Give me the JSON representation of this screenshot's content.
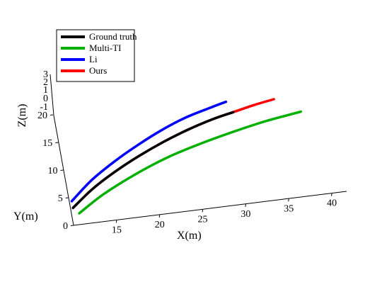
{
  "chart_data": {
    "type": "line",
    "title": "",
    "xlabel": "X(m)",
    "ylabel": "Y(m)",
    "zlabel": "Z(m)",
    "x_ticks": [
      "15",
      "20",
      "25",
      "30",
      "35",
      "40"
    ],
    "y_ticks": [
      "0",
      "5",
      "10",
      "15",
      "20"
    ],
    "z_ticks": [
      "-1",
      "0",
      "1",
      "2",
      "3"
    ],
    "legend_position": "top-left",
    "series": [
      {
        "name": "Ground truth",
        "color": "#000000",
        "points": [
          [
            10.3,
            3.1,
            0
          ],
          [
            13,
            6.1,
            0
          ],
          [
            16,
            8.7,
            0
          ],
          [
            19,
            10.9,
            0
          ],
          [
            22,
            12.8,
            0
          ],
          [
            25,
            14.4,
            0
          ],
          [
            28,
            15.7,
            0
          ],
          [
            30.5,
            16.5,
            0
          ]
        ]
      },
      {
        "name": "Multi-TI",
        "color": "#00b000",
        "points": [
          [
            10.9,
            2.0,
            0
          ],
          [
            14,
            4.8,
            0
          ],
          [
            18,
            7.6,
            0
          ],
          [
            22,
            9.9,
            0
          ],
          [
            26,
            11.6,
            0
          ],
          [
            30,
            13.0,
            0
          ],
          [
            34,
            14.2,
            0
          ],
          [
            38.2,
            15.1,
            0
          ]
        ]
      },
      {
        "name": "Li",
        "color": "#0000ff",
        "points": [
          [
            10.3,
            4.3,
            0
          ],
          [
            13,
            7.6,
            0
          ],
          [
            16,
            10.4,
            0
          ],
          [
            19,
            12.8,
            0
          ],
          [
            22,
            14.9,
            0
          ],
          [
            25,
            16.6,
            0
          ],
          [
            28,
            17.8,
            0
          ],
          [
            29.9,
            18.5,
            0
          ]
        ]
      },
      {
        "name": "Ours",
        "color": "#ff0000",
        "points": [
          [
            10.3,
            3.1,
            0
          ],
          [
            13,
            6.1,
            0
          ],
          [
            16,
            8.7,
            0
          ],
          [
            19,
            10.9,
            0
          ],
          [
            22,
            12.8,
            0
          ],
          [
            25,
            14.4,
            0
          ],
          [
            28,
            15.7,
            0
          ],
          [
            30.5,
            16.5,
            0
          ],
          [
            33,
            17.3,
            0
          ],
          [
            35.4,
            17.9,
            0
          ]
        ]
      }
    ]
  }
}
